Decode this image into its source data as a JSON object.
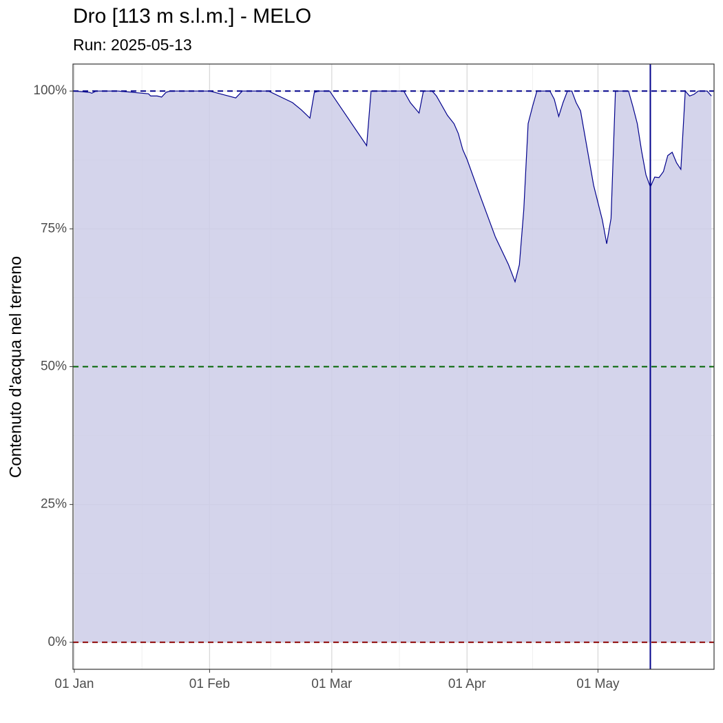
{
  "chart_data": {
    "type": "area",
    "title": "Dro [113 m s.l.m.] - MELO",
    "subtitle": "Run: 2025-05-13",
    "y_label": "Contenuto d'acqua nel terreno",
    "color": "#00008b",
    "fill": "#cccce8",
    "x": [
      0,
      3.5,
      4,
      5,
      10,
      17,
      17.5,
      19,
      20,
      21,
      22,
      31,
      37,
      38.5,
      44.5,
      50,
      52,
      54,
      55,
      56,
      58.5,
      67,
      68,
      75.5,
      77,
      79,
      80,
      82,
      83,
      85.5,
      87,
      88,
      89,
      90,
      93,
      96.5,
      99.5,
      101,
      102,
      103,
      104,
      105,
      106,
      109,
      110,
      111,
      112,
      113,
      114,
      115,
      116,
      119,
      121,
      122,
      123,
      124,
      127,
      128,
      129,
      130,
      131,
      132,
      133,
      134,
      135,
      136,
      137,
      138,
      139,
      140,
      141,
      142,
      143,
      145,
      146
    ],
    "values": [
      100,
      99.75,
      99.6,
      100,
      100,
      99.5,
      99.1,
      99.1,
      98.9,
      99.75,
      100,
      100,
      98.75,
      100,
      100,
      97.9,
      96.6,
      95.1,
      99.75,
      100,
      100,
      90.1,
      100,
      100,
      97.9,
      96,
      100,
      100,
      99.1,
      95.6,
      94.1,
      92.3,
      89.4,
      87.6,
      81,
      73.5,
      68.5,
      65.4,
      68.5,
      78.5,
      94.1,
      97.2,
      100,
      100,
      98.5,
      95.4,
      97.9,
      100,
      100,
      97.9,
      96.4,
      82.9,
      76.6,
      72.3,
      76.9,
      100,
      100,
      97.2,
      94.1,
      89.1,
      84.8,
      82.6,
      84.4,
      84.3,
      85.4,
      88.3,
      88.9,
      87,
      85.8,
      100,
      99.1,
      99.4,
      100,
      100,
      99.1
    ],
    "xlim": [
      -0.3,
      146.6
    ],
    "xticks": [
      {
        "value": 0,
        "label": "01 Jan"
      },
      {
        "value": 31,
        "label": "01 Feb"
      },
      {
        "value": 59,
        "label": "01 Mar"
      },
      {
        "value": 90,
        "label": "01 Apr"
      },
      {
        "value": 120,
        "label": "01 May"
      }
    ],
    "ylim": [
      -4.9,
      104.9
    ],
    "yticks": [
      {
        "value": 0,
        "label": "0%"
      },
      {
        "value": 25,
        "label": "25%"
      },
      {
        "value": 50,
        "label": "50%"
      },
      {
        "value": 75,
        "label": "75%"
      },
      {
        "value": 100,
        "label": "100%"
      }
    ],
    "grid": true,
    "minor_grid": true,
    "hlines": [
      {
        "value": 100,
        "color": "#00008b"
      },
      {
        "value": 50,
        "color": "#006400"
      },
      {
        "value": 0,
        "color": "#8b0000"
      }
    ],
    "vline": {
      "value": 132,
      "color": "#00008b"
    }
  }
}
